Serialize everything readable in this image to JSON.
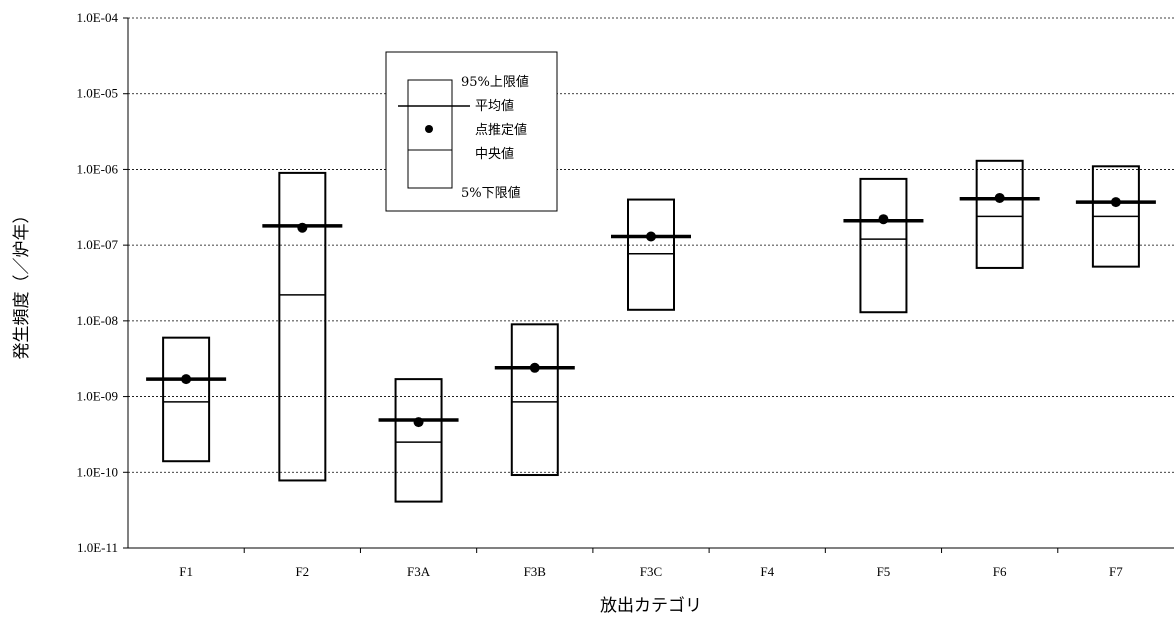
{
  "chart_data": {
    "type": "box",
    "xlabel": "放出カテゴリ",
    "ylabel": "発生頻度（／炉年）",
    "yscale": "log",
    "ylim": [
      1e-11,
      0.0001
    ],
    "grid": true,
    "y_tick_labels": [
      "1.0E-11",
      "1.0E-10",
      "1.0E-09",
      "1.0E-08",
      "1.0E-07",
      "1.0E-06",
      "1.0E-05",
      "1.0E-04"
    ],
    "categories": [
      "F1",
      "F2",
      "F3A",
      "F3B",
      "F3C",
      "F4",
      "F5",
      "F6",
      "F7"
    ],
    "series": [
      {
        "category": "F1",
        "upper95": 6e-09,
        "mean": 1.7e-09,
        "point": 1.7e-09,
        "median": 8.5e-10,
        "lower5": 1.4e-10
      },
      {
        "category": "F2",
        "upper95": 9e-07,
        "mean": 1.8e-07,
        "point": 1.7e-07,
        "median": 2.2e-08,
        "lower5": 7.8e-11
      },
      {
        "category": "F3A",
        "upper95": 1.7e-09,
        "mean": 4.9e-10,
        "point": 4.6e-10,
        "median": 2.5e-10,
        "lower5": 4.1e-11
      },
      {
        "category": "F3B",
        "upper95": 9e-09,
        "mean": 2.4e-09,
        "point": 2.4e-09,
        "median": 8.5e-10,
        "lower5": 9.2e-11
      },
      {
        "category": "F3C",
        "upper95": 4e-07,
        "mean": 1.3e-07,
        "point": 1.3e-07,
        "median": 7.7e-08,
        "lower5": 1.4e-08
      },
      {
        "category": "F4"
      },
      {
        "category": "F5",
        "upper95": 7.5e-07,
        "mean": 2.1e-07,
        "point": 2.2e-07,
        "median": 1.2e-07,
        "lower5": 1.3e-08
      },
      {
        "category": "F6",
        "upper95": 1.3e-06,
        "mean": 4.1e-07,
        "point": 4.2e-07,
        "median": 2.4e-07,
        "lower5": 5e-08
      },
      {
        "category": "F7",
        "upper95": 1.1e-06,
        "mean": 3.7e-07,
        "point": 3.7e-07,
        "median": 2.4e-07,
        "lower5": 5.2e-08
      }
    ],
    "legend": {
      "placement": "top-left",
      "upper95": "95%上限値",
      "mean": "平均値",
      "point": "点推定値",
      "median": "中央値",
      "lower5": "5%下限値"
    }
  }
}
